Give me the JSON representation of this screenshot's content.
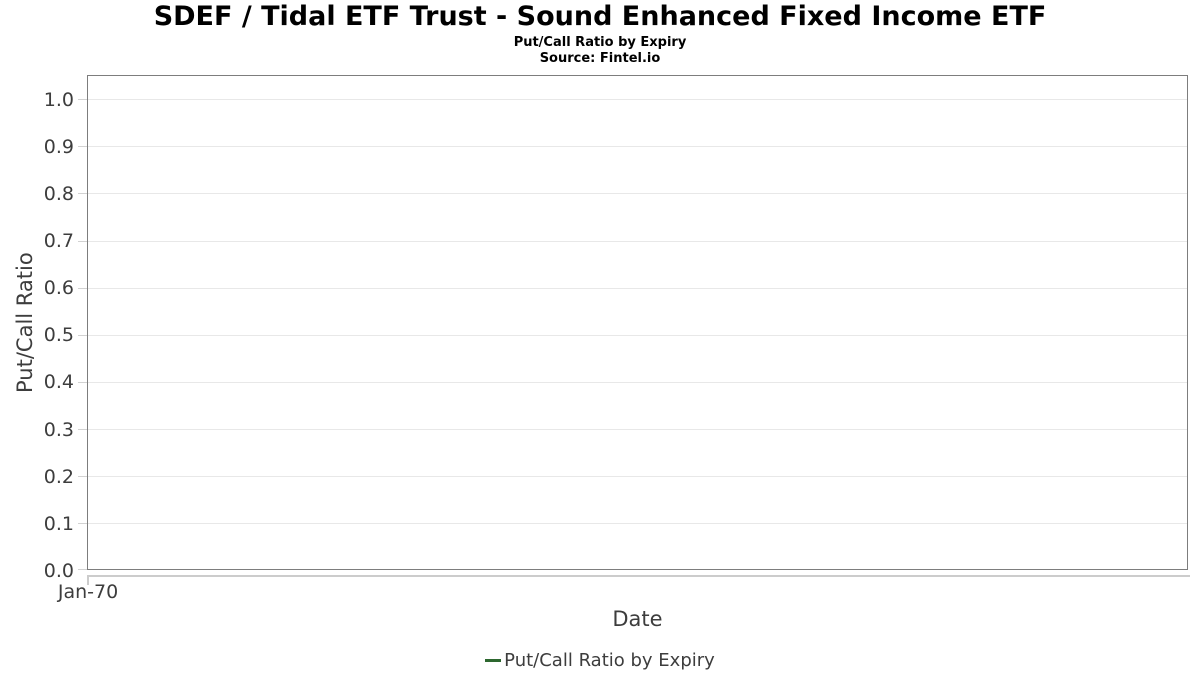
{
  "chart_data": {
    "type": "line",
    "title": "SDEF / Tidal ETF Trust - Sound Enhanced Fixed Income ETF",
    "subtitle": "Put/Call Ratio by Expiry",
    "source": "Source: Fintel.io",
    "xlabel": "Date",
    "ylabel": "Put/Call Ratio",
    "ylim": [
      0,
      1.05
    ],
    "y_ticks": [
      0.0,
      0.1,
      0.2,
      0.3,
      0.4,
      0.5,
      0.6,
      0.7,
      0.8,
      0.9,
      1.0
    ],
    "y_tick_decimals": 1,
    "x_ticks": [
      {
        "label": "Jan-70",
        "position": 0
      }
    ],
    "grid": true,
    "legend_position": "bottom",
    "legend": {
      "entries": [
        {
          "label": "Put/Call Ratio by Expiry",
          "color": "#2d672f",
          "marker": "dash"
        }
      ]
    },
    "series": [
      {
        "name": "Put/Call Ratio by Expiry",
        "color": "#2d672f",
        "points": []
      }
    ]
  }
}
